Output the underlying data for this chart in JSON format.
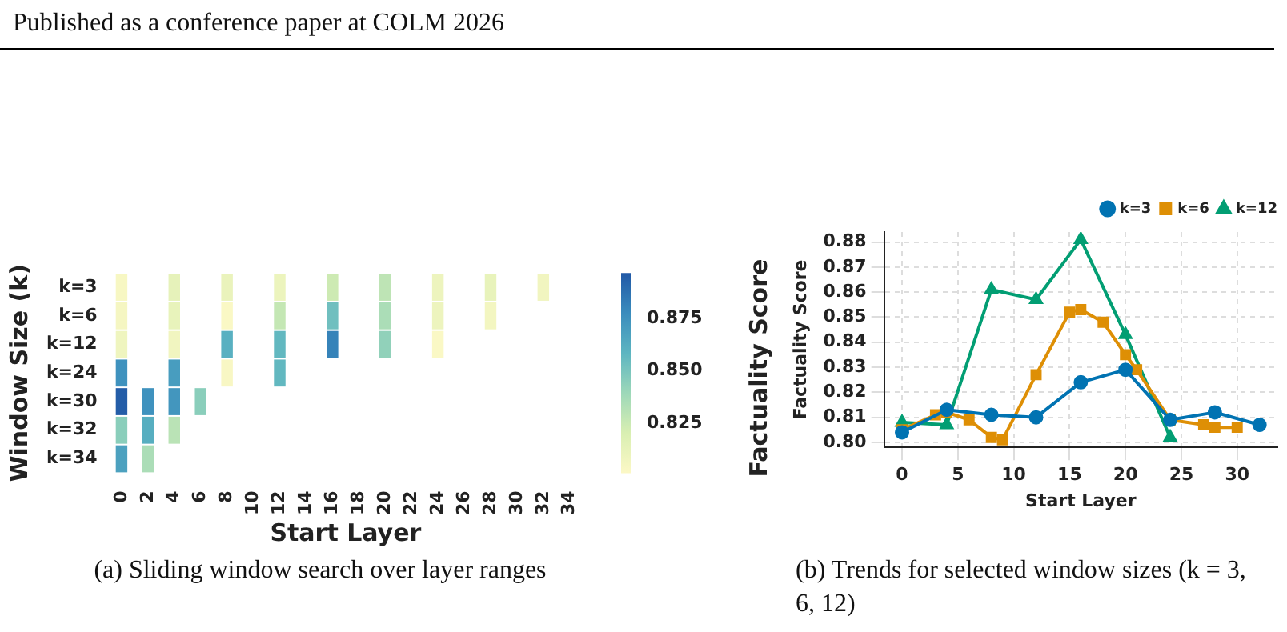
{
  "chart_data": [
    {
      "type": "heatmap",
      "xlabel": "Start Layer",
      "ylabel": "Window Size (k)",
      "clabel": "Factuality Score",
      "categories": [
        "0",
        null,
        "2",
        null,
        "4",
        null,
        "6",
        null,
        "8",
        null,
        "10",
        null,
        "12",
        null,
        "14",
        null,
        "16",
        null,
        "18",
        null,
        "20",
        null,
        "22",
        null,
        "24",
        null,
        "26",
        null,
        "28",
        null,
        "30",
        null,
        "32",
        null,
        "34"
      ],
      "y_categories": [
        "k=3",
        "k=6",
        "k=12",
        "k=24",
        "k=30",
        "k=32",
        "k=34"
      ],
      "cells": [
        [
          0.804,
          null,
          null,
          null,
          0.813,
          null,
          null,
          null,
          0.811,
          null,
          null,
          null,
          0.81,
          null,
          null,
          null,
          0.824,
          null,
          null,
          null,
          0.829,
          null,
          null,
          null,
          0.809,
          null,
          null,
          null,
          0.812,
          null,
          null,
          null,
          0.807,
          null,
          null
        ],
        [
          0.805,
          null,
          null,
          null,
          0.812,
          null,
          null,
          null,
          0.802,
          null,
          null,
          null,
          0.827,
          null,
          null,
          null,
          0.853,
          null,
          null,
          null,
          0.835,
          null,
          null,
          null,
          0.809,
          null,
          null,
          null,
          0.806,
          null,
          null,
          null,
          null,
          null,
          null
        ],
        [
          0.808,
          null,
          null,
          null,
          0.807,
          null,
          null,
          null,
          0.861,
          null,
          null,
          null,
          0.857,
          null,
          null,
          null,
          0.881,
          null,
          null,
          null,
          0.843,
          null,
          null,
          null,
          0.802,
          null,
          null,
          null,
          null,
          null,
          null,
          null,
          null,
          null,
          null
        ],
        [
          0.875,
          null,
          null,
          null,
          0.87,
          null,
          null,
          null,
          0.803,
          null,
          null,
          null,
          0.857,
          null,
          null,
          null,
          null,
          null,
          null,
          null,
          null,
          null,
          null,
          null,
          null,
          null,
          null,
          null,
          null,
          null,
          null,
          null,
          null,
          null,
          null
        ],
        [
          0.895,
          null,
          0.875,
          null,
          0.873,
          null,
          0.845,
          null,
          null,
          null,
          null,
          null,
          null,
          null,
          null,
          null,
          null,
          null,
          null,
          null,
          null,
          null,
          null,
          null,
          null,
          null,
          null,
          null,
          null,
          null,
          null,
          null,
          null,
          null,
          null
        ],
        [
          0.845,
          null,
          0.862,
          null,
          0.83,
          null,
          null,
          null,
          null,
          null,
          null,
          null,
          null,
          null,
          null,
          null,
          null,
          null,
          null,
          null,
          null,
          null,
          null,
          null,
          null,
          null,
          null,
          null,
          null,
          null,
          null,
          null,
          null,
          null,
          null
        ],
        [
          0.868,
          null,
          0.835,
          null,
          null,
          null,
          null,
          null,
          null,
          null,
          null,
          null,
          null,
          null,
          null,
          null,
          null,
          null,
          null,
          null,
          null,
          null,
          null,
          null,
          null,
          null,
          null,
          null,
          null,
          null,
          null,
          null,
          null,
          null,
          null
        ]
      ],
      "clim": [
        0.801,
        0.897
      ],
      "cticks": [
        0.825,
        {
          "value": 0.85,
          "label": "0.850"
        },
        0.875
      ],
      "annotations": [
        "Published as a conference paper at COLM 2026",
        "(a) Sliding window search over layer ranges"
      ]
    },
    {
      "type": "line",
      "xlabel": "Start Layer",
      "ylabel": "Factuality Score",
      "xlim": [
        -1.6,
        33.6
      ],
      "ylim": [
        0.798,
        0.884
      ],
      "xticks": [
        0,
        5,
        10,
        15,
        20,
        25,
        30
      ],
      "yticks": [
        {
          "value": 0.8,
          "label": "0.80"
        },
        0.81,
        0.82,
        0.83,
        0.84,
        0.85,
        0.86,
        0.87,
        0.88
      ],
      "grid": true,
      "legend": "top right",
      "line_style": "solid",
      "series": [
        {
          "name": "k=3",
          "color": "#0173b2",
          "marker": "circle",
          "x": [
            0,
            4,
            8,
            12,
            16,
            20,
            24,
            28,
            32
          ],
          "values": [
            0.804,
            0.813,
            0.811,
            0.81,
            0.824,
            0.829,
            0.809,
            0.812,
            0.807
          ]
        },
        {
          "name": "k=6",
          "color": "#de8f05",
          "marker": "square",
          "x": [
            0,
            3,
            4,
            6,
            8,
            9,
            12,
            15,
            16,
            18,
            20,
            21,
            24,
            27,
            28,
            30
          ],
          "values": [
            0.805,
            0.811,
            0.812,
            0.809,
            0.802,
            0.801,
            0.827,
            0.852,
            0.853,
            0.848,
            0.835,
            0.829,
            0.809,
            0.807,
            0.806,
            0.806
          ]
        },
        {
          "name": "k=12",
          "color": "#029e73",
          "marker": "triangle",
          "x": [
            0,
            4,
            8,
            12,
            16,
            20,
            24
          ],
          "values": [
            0.808,
            0.807,
            0.861,
            0.857,
            0.881,
            0.843,
            0.802
          ]
        }
      ],
      "annotations": [
        "(b) Trends for selected window sizes (k = 3, 6, 12)"
      ]
    }
  ]
}
